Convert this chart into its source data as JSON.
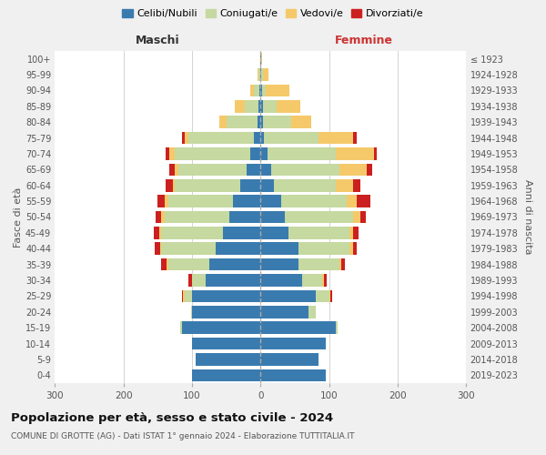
{
  "age_groups": [
    "0-4",
    "5-9",
    "10-14",
    "15-19",
    "20-24",
    "25-29",
    "30-34",
    "35-39",
    "40-44",
    "45-49",
    "50-54",
    "55-59",
    "60-64",
    "65-69",
    "70-74",
    "75-79",
    "80-84",
    "85-89",
    "90-94",
    "95-99",
    "100+"
  ],
  "birth_years": [
    "2019-2023",
    "2014-2018",
    "2009-2013",
    "2004-2008",
    "1999-2003",
    "1994-1998",
    "1989-1993",
    "1984-1988",
    "1979-1983",
    "1974-1978",
    "1969-1973",
    "1964-1968",
    "1959-1963",
    "1954-1958",
    "1949-1953",
    "1944-1948",
    "1939-1943",
    "1934-1938",
    "1929-1933",
    "1924-1928",
    "≤ 1923"
  ],
  "maschi": {
    "celibi": [
      100,
      95,
      100,
      115,
      100,
      100,
      80,
      75,
      65,
      55,
      45,
      40,
      30,
      20,
      15,
      10,
      5,
      3,
      2,
      1,
      1
    ],
    "coniugati": [
      0,
      0,
      0,
      2,
      2,
      10,
      20,
      60,
      80,
      90,
      95,
      95,
      95,
      100,
      110,
      95,
      45,
      20,
      8,
      2,
      0
    ],
    "vedovi": [
      0,
      0,
      0,
      0,
      0,
      3,
      0,
      2,
      2,
      3,
      5,
      5,
      3,
      5,
      8,
      5,
      10,
      15,
      5,
      1,
      0
    ],
    "divorziati": [
      0,
      0,
      0,
      0,
      0,
      2,
      5,
      8,
      8,
      8,
      8,
      10,
      10,
      8,
      5,
      5,
      0,
      0,
      0,
      0,
      0
    ]
  },
  "femmine": {
    "nubili": [
      95,
      85,
      95,
      110,
      70,
      80,
      60,
      55,
      55,
      40,
      35,
      30,
      20,
      15,
      10,
      5,
      4,
      3,
      2,
      1,
      1
    ],
    "coniugate": [
      0,
      0,
      0,
      2,
      10,
      20,
      30,
      60,
      75,
      90,
      100,
      95,
      90,
      100,
      100,
      80,
      40,
      20,
      5,
      2,
      0
    ],
    "vedove": [
      0,
      0,
      0,
      0,
      0,
      2,
      2,
      3,
      5,
      5,
      10,
      15,
      25,
      40,
      55,
      50,
      30,
      35,
      35,
      8,
      1
    ],
    "divorziate": [
      0,
      0,
      0,
      0,
      0,
      2,
      5,
      5,
      5,
      8,
      8,
      20,
      10,
      8,
      5,
      5,
      0,
      0,
      0,
      0,
      0
    ]
  },
  "colors": {
    "celibi_nubili": "#3a7baf",
    "coniugati": "#c5d9a0",
    "vedovi": "#f5c96a",
    "divorziati": "#cc2020"
  },
  "xlim": 300,
  "title": "Popolazione per età, sesso e stato civile - 2024",
  "subtitle": "COMUNE DI GROTTE (AG) - Dati ISTAT 1° gennaio 2024 - Elaborazione TUTTITALIA.IT",
  "ylabel_left": "Fasce di età",
  "ylabel_right": "Anni di nascita",
  "xlabel_left": "Maschi",
  "xlabel_right": "Femmine",
  "legend_labels": [
    "Celibi/Nubili",
    "Coniugati/e",
    "Vedovi/e",
    "Divorziati/e"
  ],
  "bg_color": "#f0f0f0",
  "plot_bg_color": "#ffffff",
  "maschi_label_color": "#333333",
  "femmine_label_color": "#cc3333"
}
